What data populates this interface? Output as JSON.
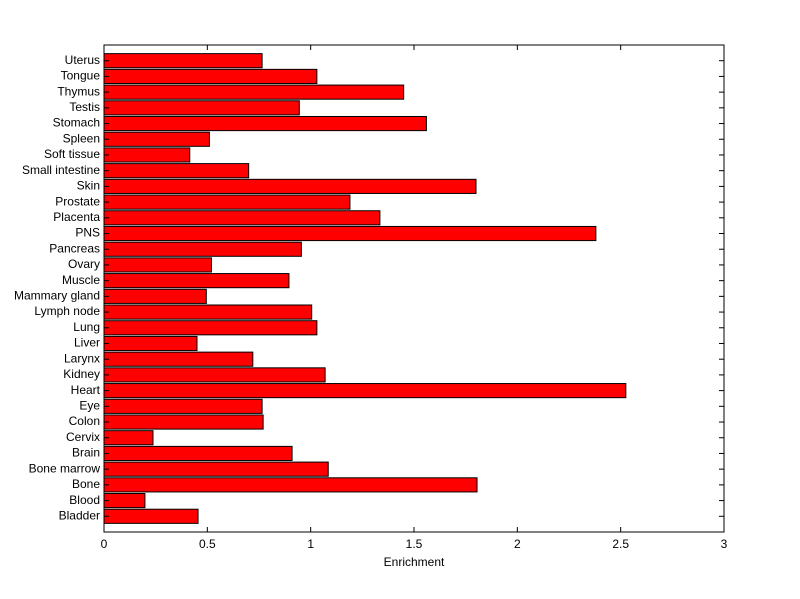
{
  "chart_data": {
    "type": "barh",
    "xlabel": "Enrichment",
    "categories": [
      "Bladder",
      "Blood",
      "Bone",
      "Bone marrow",
      "Brain",
      "Cervix",
      "Colon",
      "Eye",
      "Heart",
      "Kidney",
      "Larynx",
      "Liver",
      "Lung",
      "Lymph node",
      "Mammary gland",
      "Muscle",
      "Ovary",
      "Pancreas",
      "PNS",
      "Placenta",
      "Prostate",
      "Skin",
      "Small intestine",
      "Soft tissue",
      "Spleen",
      "Stomach",
      "Testis",
      "Thymus",
      "Tongue",
      "Uterus"
    ],
    "values": [
      0.455,
      0.198,
      1.805,
      1.085,
      0.91,
      0.237,
      0.77,
      0.765,
      2.525,
      1.07,
      0.72,
      0.45,
      1.03,
      1.005,
      0.495,
      0.895,
      0.52,
      0.955,
      2.38,
      1.335,
      1.19,
      1.8,
      0.7,
      0.415,
      0.51,
      1.56,
      0.945,
      1.45,
      1.03,
      0.765
    ],
    "color": "#ff0000",
    "xlim": [
      0,
      3
    ],
    "xticks": [
      0,
      0.5,
      1,
      1.5,
      2,
      2.5,
      3
    ]
  }
}
